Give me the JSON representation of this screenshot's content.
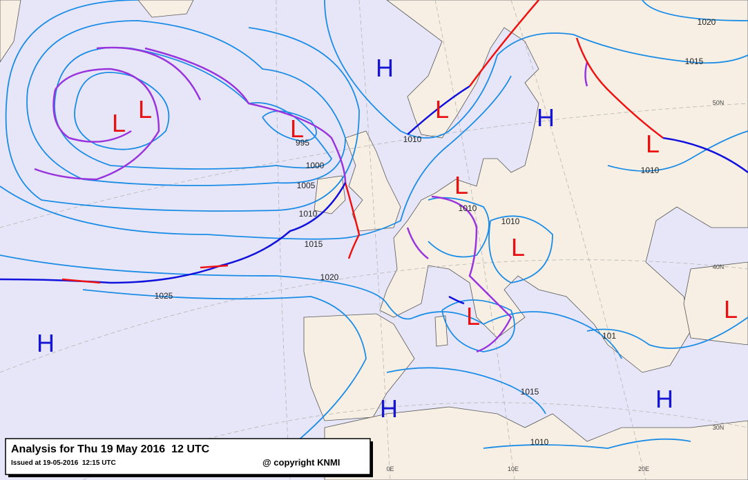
{
  "title": {
    "analysis": "Analysis for Thu 19 May 2016  12 UTC",
    "issued": "Issued at 19-05-2016  12:15 UTC",
    "copyright": "@ copyright KNMI"
  },
  "pressure_systems": [
    {
      "label": "H",
      "color": "#1414d2"
    },
    {
      "label": "L",
      "color": "#e81010"
    },
    {
      "label": "L",
      "color": "#e81010"
    },
    {
      "label": "L",
      "color": "#e81010"
    },
    {
      "label": "L",
      "color": "#e81010"
    },
    {
      "label": "H",
      "color": "#1414d2"
    },
    {
      "label": "L",
      "color": "#e81010"
    },
    {
      "label": "L",
      "color": "#e81010"
    },
    {
      "label": "L",
      "color": "#e81010"
    },
    {
      "label": "L",
      "color": "#e81010"
    },
    {
      "label": "L",
      "color": "#e81010"
    },
    {
      "label": "H",
      "color": "#1414d2"
    },
    {
      "label": "H",
      "color": "#1414d2"
    },
    {
      "label": "H",
      "color": "#1414d2"
    }
  ],
  "isobar_labels": [
    "1020",
    "1015",
    "1010",
    "995",
    "1000",
    "1005",
    "1010",
    "1015",
    "1020",
    "1025",
    "1010",
    "1010",
    "1010",
    "1015",
    "1010",
    "101"
  ],
  "graticule_labels": [
    "50N",
    "40N",
    "30N",
    "0E",
    "10E",
    "20E"
  ]
}
